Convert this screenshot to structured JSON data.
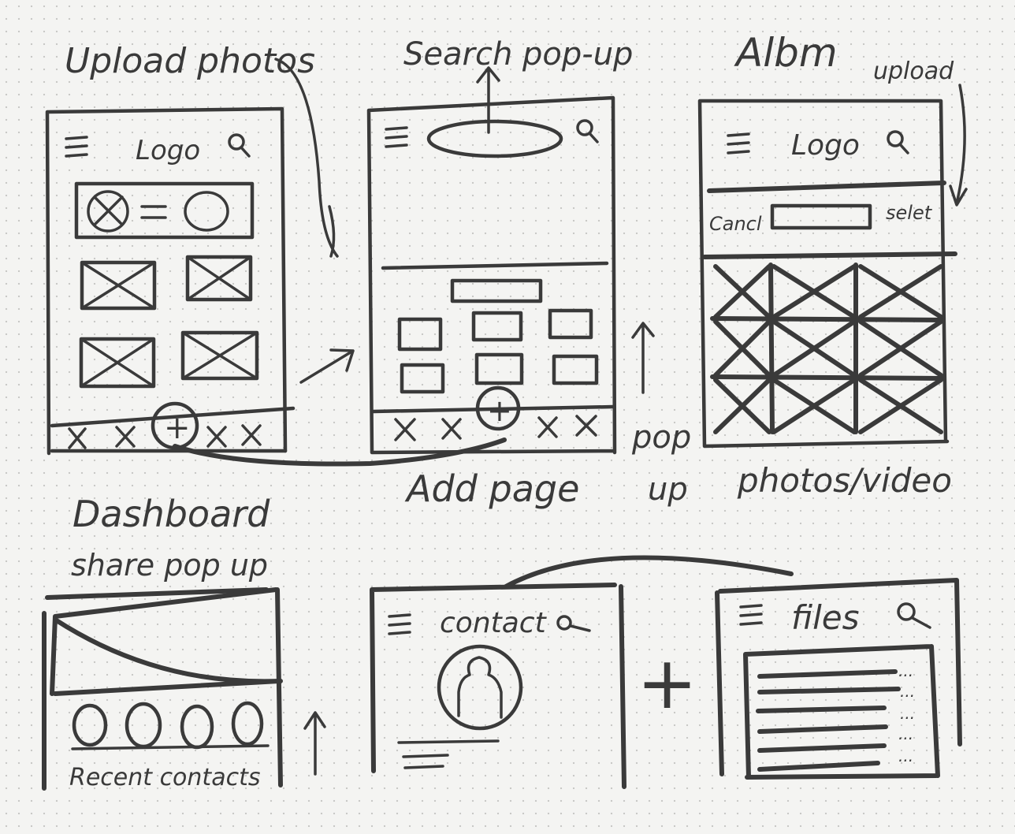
{
  "labels": {
    "upload_photos": "Upload photos",
    "search_popup": "Search pop-up",
    "album": "Albm",
    "upload": "upload",
    "dashboard": "Dashboard",
    "add_page": "Add page",
    "pop_up_1": "pop",
    "pop_up_2": "up",
    "photos_video": "photos/video",
    "share_popup": "share pop up",
    "recent_contacts": "Recent contacts"
  },
  "frames": {
    "dashboard": {
      "logo": "Logo"
    },
    "album": {
      "logo": "Logo",
      "cancel": "Cancl",
      "select": "selet"
    },
    "contact": {
      "title": "contact"
    },
    "files": {
      "title": "files"
    }
  },
  "symbols": {
    "plus": "+",
    "more": "..."
  },
  "ink_color": "#3a3a3a",
  "paper_color": "#f4f4f2"
}
